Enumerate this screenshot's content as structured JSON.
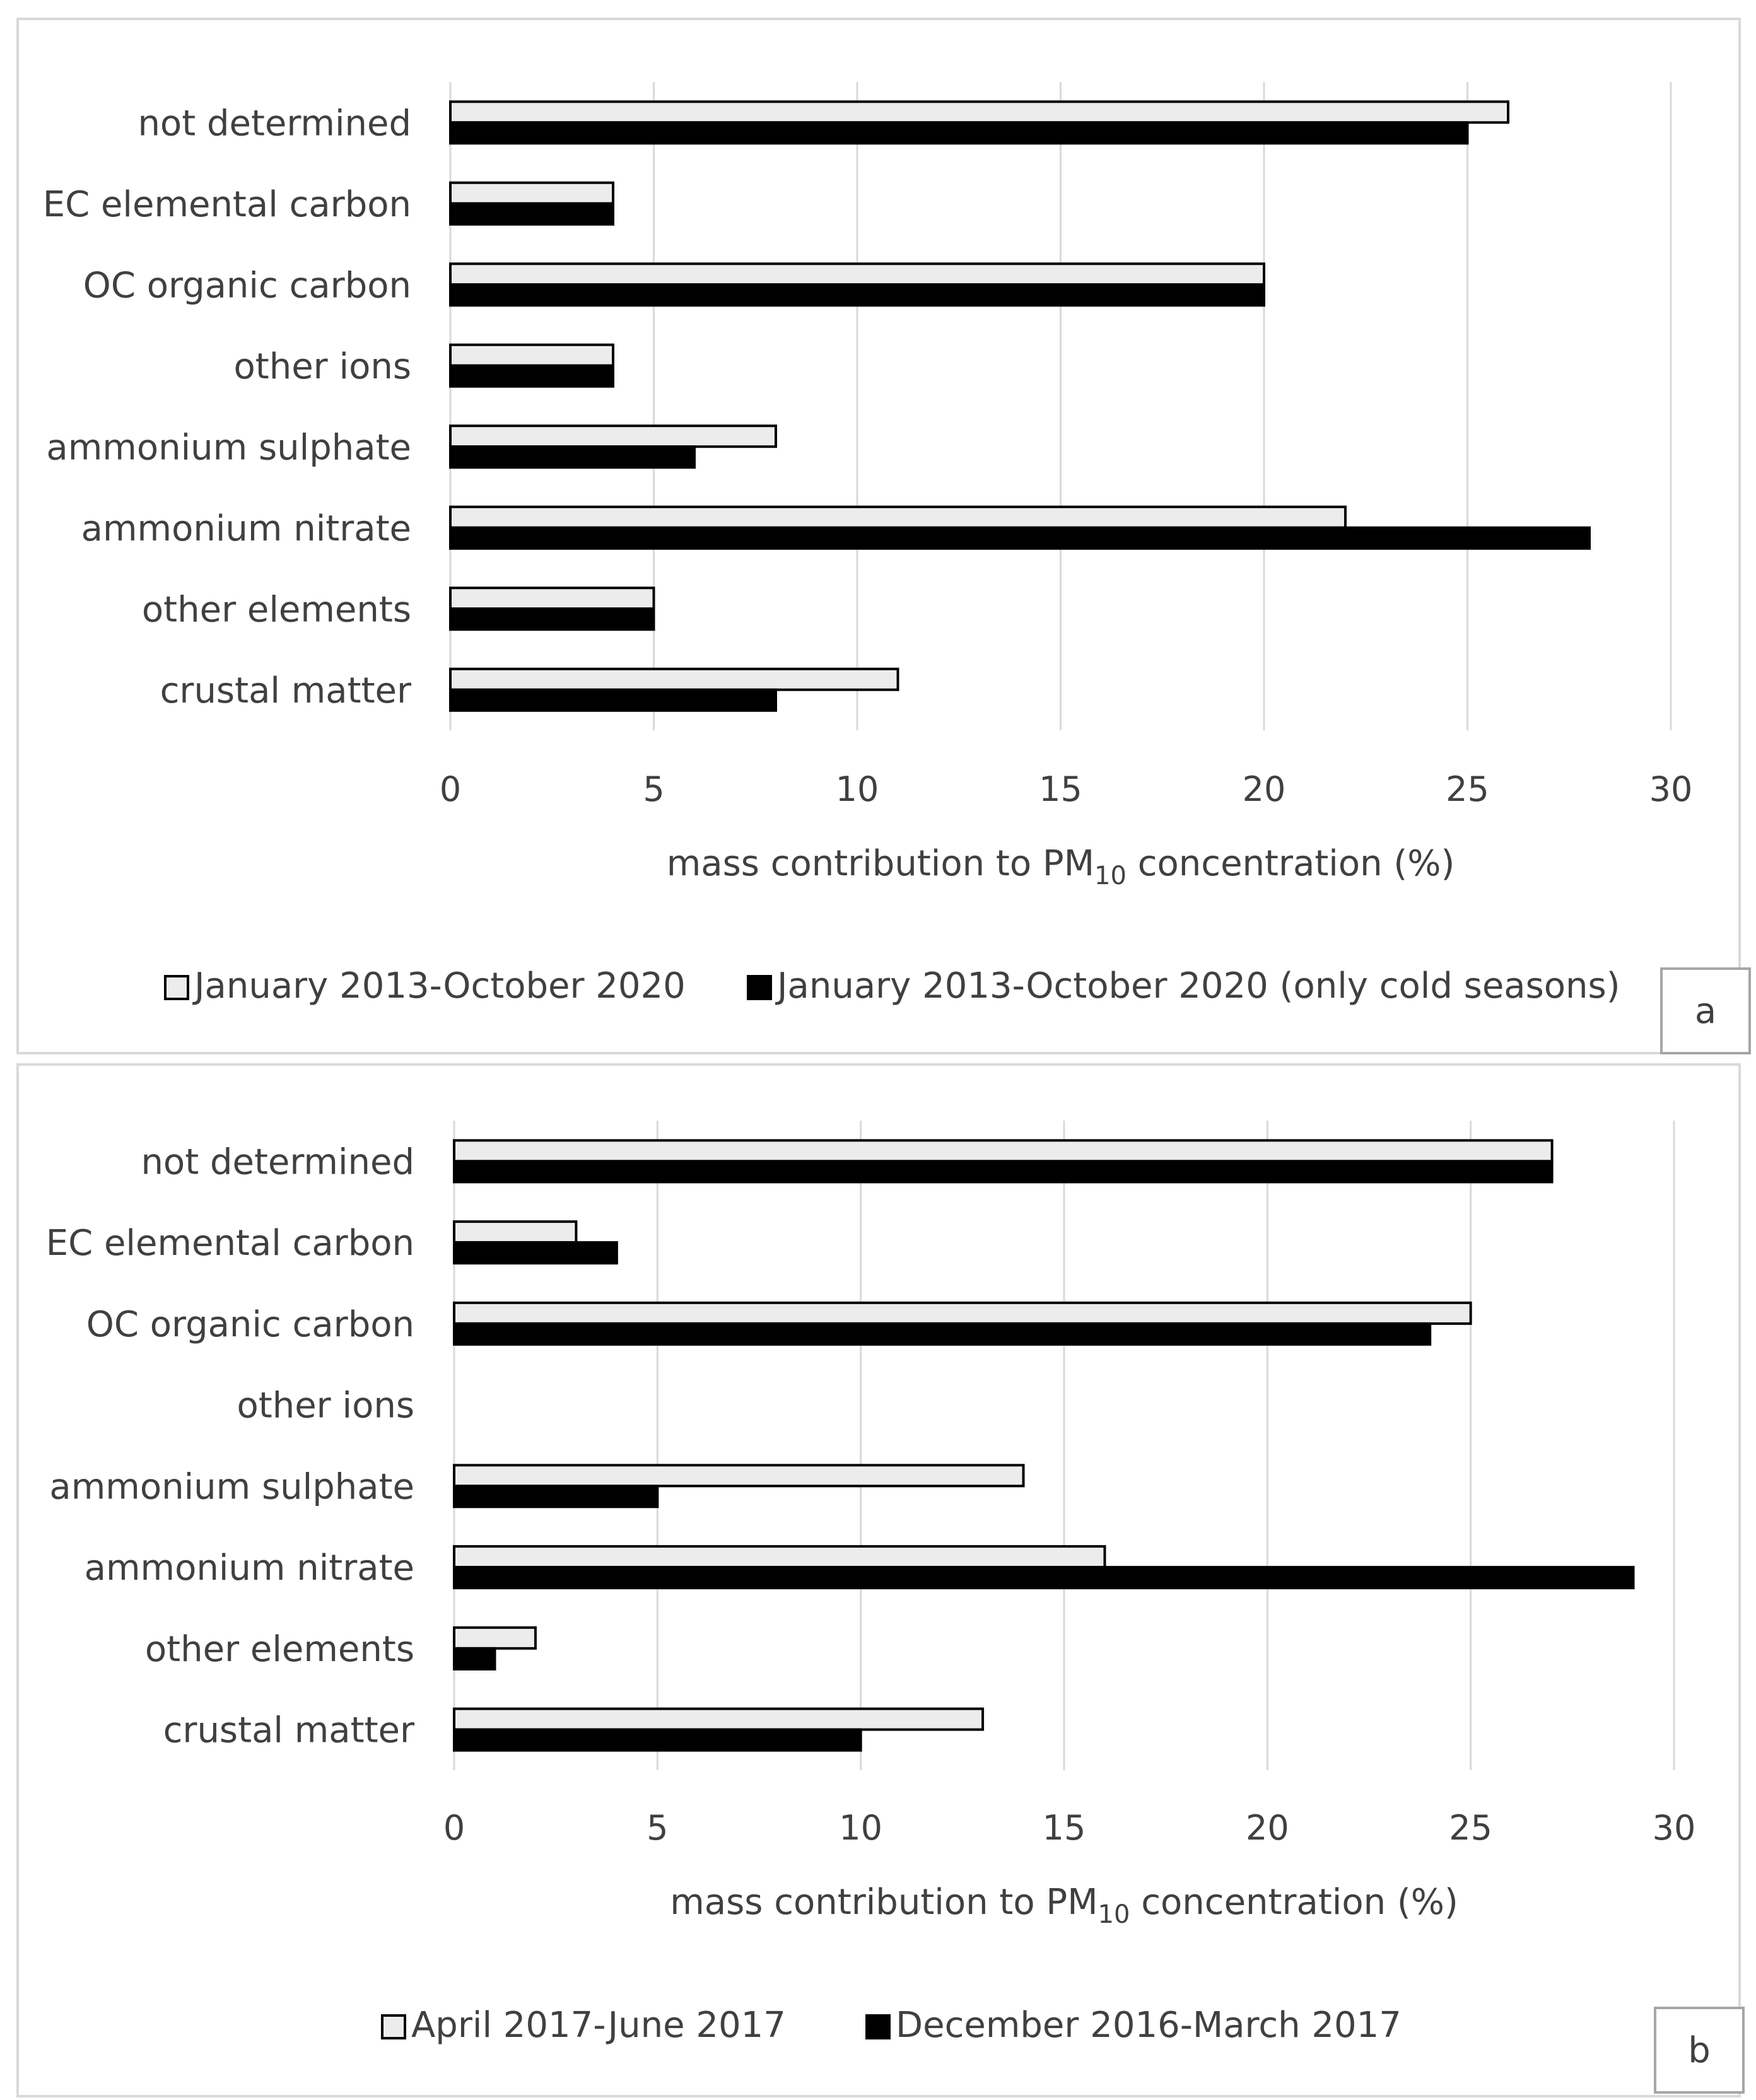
{
  "chart_data": [
    {
      "type": "bar",
      "orientation": "horizontal",
      "panel_label": "a",
      "categories": [
        "not determined",
        "EC elemental carbon",
        "OC organic carbon",
        "other ions",
        "ammonium sulphate",
        "ammonium nitrate",
        "other elements",
        "crustal matter"
      ],
      "series": [
        {
          "name": "January 2013-October 2020",
          "color": "#ececec",
          "values": [
            26,
            4,
            20,
            4,
            8,
            22,
            5,
            11
          ]
        },
        {
          "name": "January 2013-October 2020 (only cold seasons)",
          "color": "#000000",
          "values": [
            25,
            4,
            20,
            4,
            6,
            28,
            5,
            8
          ]
        }
      ],
      "xlabel_main": "mass contribution to PM",
      "xlabel_sub": "10",
      "xlabel_tail": " concentration (%)",
      "xlim": [
        0,
        30
      ],
      "xticks": [
        "0",
        "5",
        "10",
        "15",
        "20",
        "25",
        "30"
      ],
      "grid": true,
      "legend_position": "bottom"
    },
    {
      "type": "bar",
      "orientation": "horizontal",
      "panel_label": "b",
      "categories": [
        "not determined",
        "EC elemental carbon",
        "OC organic carbon",
        "other ions",
        "ammonium sulphate",
        "ammonium nitrate",
        "other elements",
        "crustal matter"
      ],
      "series": [
        {
          "name": "April 2017-June 2017",
          "color": "#ececec",
          "values": [
            27,
            3,
            25,
            0,
            14,
            16,
            2,
            13
          ]
        },
        {
          "name": "December 2016-March 2017",
          "color": "#000000",
          "values": [
            27,
            4,
            24,
            0,
            5,
            29,
            1,
            10
          ]
        }
      ],
      "xlabel_main": "mass contribution to PM",
      "xlabel_sub": "10",
      "xlabel_tail": " concentration (%)",
      "xlim": [
        0,
        30
      ],
      "xticks": [
        "0",
        "5",
        "10",
        "15",
        "20",
        "25",
        "30"
      ],
      "grid": true,
      "legend_position": "bottom"
    }
  ]
}
